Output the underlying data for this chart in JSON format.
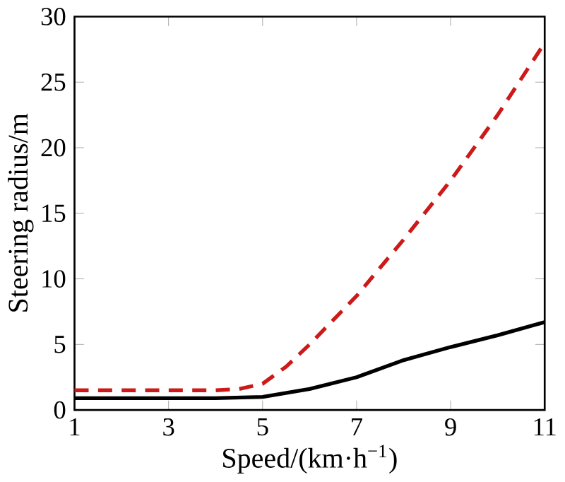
{
  "chart_data": {
    "type": "line",
    "xlabel": "Speed/(km·h$^{−1}$)",
    "ylabel": "Steering radius/m",
    "xlim": [
      1,
      11
    ],
    "ylim": [
      0,
      30
    ],
    "xticks": [
      1,
      3,
      5,
      7,
      9,
      11
    ],
    "yticks": [
      0,
      5,
      10,
      15,
      20,
      25,
      30
    ],
    "grid": false,
    "marker": "none",
    "series": [
      {
        "color": "#cc1a1a",
        "line_style": "dashed",
        "x": [
          1,
          2,
          3,
          4,
          4.5,
          5,
          5.5,
          6,
          7,
          8,
          9,
          10,
          11
        ],
        "values": [
          1.5,
          1.5,
          1.5,
          1.5,
          1.6,
          2,
          3.3,
          5,
          8.7,
          13,
          17.5,
          22.5,
          28
        ]
      },
      {
        "color": "#000000",
        "line_style": "solid",
        "x": [
          1,
          2,
          3,
          4,
          5,
          6,
          7,
          8,
          9,
          10,
          11
        ],
        "values": [
          0.9,
          0.9,
          0.9,
          0.9,
          1.0,
          1.6,
          2.5,
          3.8,
          4.8,
          5.7,
          6.7
        ]
      }
    ]
  }
}
